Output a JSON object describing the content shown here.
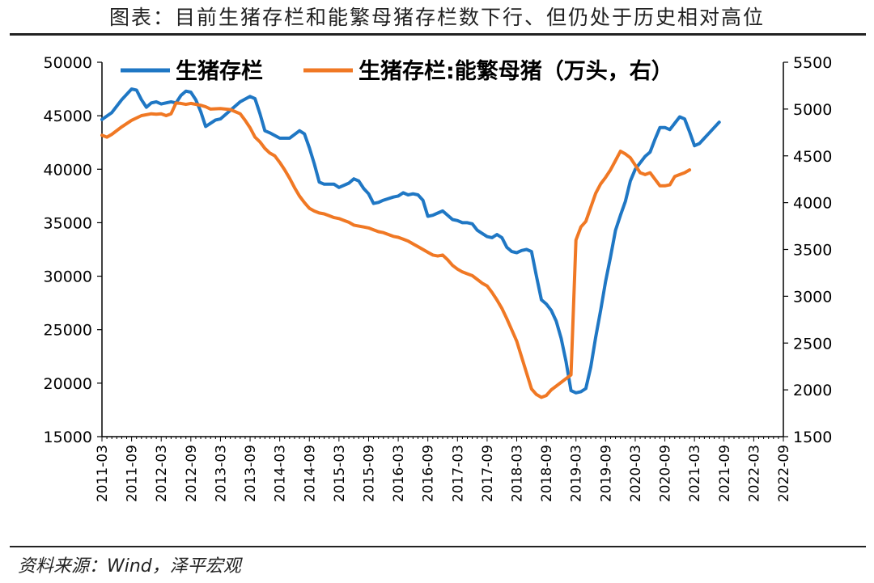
{
  "title": "图表：目前生猪存栏和能繁母猪存栏数下行、但仍处于历史相对高位",
  "source": "资料来源：Wind，泽平宏观",
  "chart_data": {
    "type": "line",
    "x_labels": [
      "2011-03",
      "2011-09",
      "2012-03",
      "2012-09",
      "2013-03",
      "2013-09",
      "2014-03",
      "2014-09",
      "2015-03",
      "2015-09",
      "2016-03",
      "2016-09",
      "2017-03",
      "2017-09",
      "2018-03",
      "2018-09",
      "2019-03",
      "2019-09",
      "2020-03",
      "2020-09",
      "2021-03",
      "2021-09",
      "2022-03",
      "2022-09"
    ],
    "y_left": {
      "min": 15000,
      "max": 50000,
      "ticks": [
        15000,
        20000,
        25000,
        30000,
        35000,
        40000,
        45000,
        50000
      ]
    },
    "y_right": {
      "min": 1500,
      "max": 5500,
      "ticks": [
        1500,
        2000,
        2500,
        3000,
        3500,
        4000,
        4500,
        5000,
        5500
      ]
    },
    "legend_placement": "top",
    "grid": false,
    "series": [
      {
        "name": "生猪存栏",
        "axis": "left",
        "color": "#1f77c4",
        "values": [
          [
            "2011-03",
            44650
          ],
          [
            "2011-05",
            45300
          ],
          [
            "2011-07",
            46500
          ],
          [
            "2011-09",
            47500
          ],
          [
            "2011-10",
            47400
          ],
          [
            "2011-11",
            46500
          ],
          [
            "2011-12",
            45800
          ],
          [
            "2012-01",
            46200
          ],
          [
            "2012-02",
            46300
          ],
          [
            "2012-03",
            46100
          ],
          [
            "2012-05",
            46300
          ],
          [
            "2012-06",
            46200
          ],
          [
            "2012-07",
            46900
          ],
          [
            "2012-08",
            47300
          ],
          [
            "2012-09",
            47200
          ],
          [
            "2012-10",
            46500
          ],
          [
            "2012-11",
            45400
          ],
          [
            "2012-12",
            44000
          ],
          [
            "2013-01",
            44300
          ],
          [
            "2013-02",
            44600
          ],
          [
            "2013-03",
            44700
          ],
          [
            "2013-05",
            45500
          ],
          [
            "2013-07",
            46300
          ],
          [
            "2013-09",
            46800
          ],
          [
            "2013-10",
            46600
          ],
          [
            "2013-11",
            45200
          ],
          [
            "2013-12",
            43600
          ],
          [
            "2014-01",
            43400
          ],
          [
            "2014-03",
            42900
          ],
          [
            "2014-05",
            42900
          ],
          [
            "2014-07",
            43600
          ],
          [
            "2014-08",
            43300
          ],
          [
            "2014-09",
            42000
          ],
          [
            "2014-10",
            40500
          ],
          [
            "2014-11",
            38800
          ],
          [
            "2014-12",
            38600
          ],
          [
            "2015-02",
            38600
          ],
          [
            "2015-03",
            38300
          ],
          [
            "2015-05",
            38700
          ],
          [
            "2015-06",
            39100
          ],
          [
            "2015-07",
            38900
          ],
          [
            "2015-08",
            38200
          ],
          [
            "2015-09",
            37700
          ],
          [
            "2015-10",
            36800
          ],
          [
            "2015-11",
            36900
          ],
          [
            "2015-12",
            37100
          ],
          [
            "2016-02",
            37400
          ],
          [
            "2016-03",
            37500
          ],
          [
            "2016-04",
            37800
          ],
          [
            "2016-05",
            37600
          ],
          [
            "2016-06",
            37700
          ],
          [
            "2016-07",
            37600
          ],
          [
            "2016-08",
            37100
          ],
          [
            "2016-09",
            35600
          ],
          [
            "2016-10",
            35700
          ],
          [
            "2016-11",
            35900
          ],
          [
            "2016-12",
            36100
          ],
          [
            "2017-02",
            35300
          ],
          [
            "2017-03",
            35200
          ],
          [
            "2017-04",
            35000
          ],
          [
            "2017-05",
            35000
          ],
          [
            "2017-06",
            34900
          ],
          [
            "2017-07",
            34300
          ],
          [
            "2017-08",
            34000
          ],
          [
            "2017-09",
            33700
          ],
          [
            "2017-10",
            33600
          ],
          [
            "2017-11",
            33900
          ],
          [
            "2017-12",
            33600
          ],
          [
            "2018-01",
            32700
          ],
          [
            "2018-02",
            32300
          ],
          [
            "2018-03",
            32200
          ],
          [
            "2018-04",
            32400
          ],
          [
            "2018-05",
            32500
          ],
          [
            "2018-06",
            32300
          ],
          [
            "2018-07",
            30000
          ],
          [
            "2018-08",
            27800
          ],
          [
            "2018-09",
            27400
          ],
          [
            "2018-10",
            26800
          ],
          [
            "2018-11",
            25800
          ],
          [
            "2018-12",
            24200
          ],
          [
            "2019-01",
            22000
          ],
          [
            "2019-02",
            19300
          ],
          [
            "2019-03",
            19100
          ],
          [
            "2019-04",
            19200
          ],
          [
            "2019-05",
            19500
          ],
          [
            "2019-06",
            21500
          ],
          [
            "2019-07",
            24300
          ],
          [
            "2019-08",
            26800
          ],
          [
            "2019-09",
            29500
          ],
          [
            "2019-10",
            31800
          ],
          [
            "2019-11",
            34300
          ],
          [
            "2019-12",
            35700
          ],
          [
            "2020-01",
            37000
          ],
          [
            "2020-02",
            38900
          ],
          [
            "2020-03",
            40000
          ],
          [
            "2020-04",
            40600
          ],
          [
            "2020-05",
            41200
          ],
          [
            "2020-06",
            41600
          ],
          [
            "2020-07",
            42800
          ],
          [
            "2020-08",
            43900
          ],
          [
            "2020-09",
            43900
          ],
          [
            "2020-10",
            43700
          ],
          [
            "2020-11",
            44300
          ],
          [
            "2020-12",
            44900
          ],
          [
            "2021-01",
            44700
          ],
          [
            "2021-02",
            43500
          ],
          [
            "2021-03",
            42200
          ],
          [
            "2021-04",
            42400
          ],
          [
            "2021-05",
            42900
          ],
          [
            "2021-06",
            43400
          ],
          [
            "2021-07",
            43900
          ],
          [
            "2021-08",
            44400
          ]
        ]
      },
      {
        "name": "生猪存栏:能繁母猪（万头，右）",
        "axis": "right",
        "color": "#f07824",
        "values": [
          [
            "2011-03",
            4720
          ],
          [
            "2011-04",
            4700
          ],
          [
            "2011-05",
            4730
          ],
          [
            "2011-07",
            4810
          ],
          [
            "2011-09",
            4880
          ],
          [
            "2011-11",
            4930
          ],
          [
            "2012-01",
            4950
          ],
          [
            "2012-02",
            4945
          ],
          [
            "2012-03",
            4950
          ],
          [
            "2012-04",
            4930
          ],
          [
            "2012-05",
            4950
          ],
          [
            "2012-06",
            5065
          ],
          [
            "2012-07",
            5060
          ],
          [
            "2012-08",
            5050
          ],
          [
            "2012-09",
            5060
          ],
          [
            "2012-11",
            5040
          ],
          [
            "2012-12",
            5025
          ],
          [
            "2013-01",
            5000
          ],
          [
            "2013-03",
            5005
          ],
          [
            "2013-05",
            4995
          ],
          [
            "2013-07",
            4950
          ],
          [
            "2013-08",
            4880
          ],
          [
            "2013-09",
            4800
          ],
          [
            "2013-10",
            4700
          ],
          [
            "2013-11",
            4650
          ],
          [
            "2013-12",
            4580
          ],
          [
            "2014-01",
            4530
          ],
          [
            "2014-02",
            4500
          ],
          [
            "2014-03",
            4430
          ],
          [
            "2014-04",
            4350
          ],
          [
            "2014-05",
            4260
          ],
          [
            "2014-06",
            4160
          ],
          [
            "2014-07",
            4070
          ],
          [
            "2014-08",
            4000
          ],
          [
            "2014-09",
            3940
          ],
          [
            "2014-10",
            3910
          ],
          [
            "2014-11",
            3890
          ],
          [
            "2014-12",
            3880
          ],
          [
            "2015-01",
            3860
          ],
          [
            "2015-02",
            3840
          ],
          [
            "2015-03",
            3830
          ],
          [
            "2015-04",
            3810
          ],
          [
            "2015-05",
            3790
          ],
          [
            "2015-06",
            3760
          ],
          [
            "2015-07",
            3750
          ],
          [
            "2015-08",
            3740
          ],
          [
            "2015-09",
            3730
          ],
          [
            "2015-10",
            3710
          ],
          [
            "2015-11",
            3690
          ],
          [
            "2015-12",
            3680
          ],
          [
            "2016-01",
            3660
          ],
          [
            "2016-02",
            3640
          ],
          [
            "2016-03",
            3630
          ],
          [
            "2016-04",
            3610
          ],
          [
            "2016-05",
            3590
          ],
          [
            "2016-06",
            3560
          ],
          [
            "2016-07",
            3530
          ],
          [
            "2016-08",
            3500
          ],
          [
            "2016-09",
            3470
          ],
          [
            "2016-10",
            3440
          ],
          [
            "2016-11",
            3430
          ],
          [
            "2016-12",
            3440
          ],
          [
            "2017-01",
            3390
          ],
          [
            "2017-02",
            3330
          ],
          [
            "2017-03",
            3290
          ],
          [
            "2017-04",
            3260
          ],
          [
            "2017-05",
            3240
          ],
          [
            "2017-06",
            3220
          ],
          [
            "2017-07",
            3180
          ],
          [
            "2017-08",
            3140
          ],
          [
            "2017-09",
            3110
          ],
          [
            "2017-10",
            3040
          ],
          [
            "2017-11",
            2960
          ],
          [
            "2017-12",
            2870
          ],
          [
            "2018-01",
            2760
          ],
          [
            "2018-02",
            2640
          ],
          [
            "2018-03",
            2520
          ],
          [
            "2018-04",
            2350
          ],
          [
            "2018-05",
            2180
          ],
          [
            "2018-06",
            2010
          ],
          [
            "2018-07",
            1950
          ],
          [
            "2018-08",
            1920
          ],
          [
            "2018-09",
            1940
          ],
          [
            "2018-10",
            2000
          ],
          [
            "2018-11",
            2040
          ],
          [
            "2018-12",
            2080
          ],
          [
            "2019-01",
            2120
          ],
          [
            "2019-02",
            2160
          ],
          [
            "2019-03",
            3600
          ],
          [
            "2019-04",
            3740
          ],
          [
            "2019-05",
            3800
          ],
          [
            "2019-06",
            3950
          ],
          [
            "2019-07",
            4100
          ],
          [
            "2019-08",
            4200
          ],
          [
            "2019-09",
            4270
          ],
          [
            "2019-10",
            4350
          ],
          [
            "2019-11",
            4450
          ],
          [
            "2019-12",
            4550
          ],
          [
            "2020-01",
            4520
          ],
          [
            "2020-02",
            4480
          ],
          [
            "2020-03",
            4400
          ],
          [
            "2020-04",
            4320
          ],
          [
            "2020-05",
            4300
          ],
          [
            "2020-06",
            4320
          ],
          [
            "2020-07",
            4250
          ],
          [
            "2020-08",
            4180
          ],
          [
            "2020-09",
            4180
          ],
          [
            "2020-10",
            4190
          ],
          [
            "2020-11",
            4280
          ],
          [
            "2020-12",
            4300
          ],
          [
            "2021-01",
            4320
          ],
          [
            "2021-02",
            4350
          ]
        ]
      }
    ]
  }
}
